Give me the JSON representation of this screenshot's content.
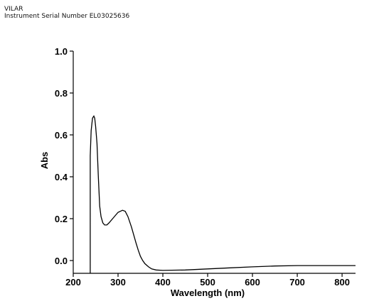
{
  "header": {
    "line1": "VILAR",
    "line2": "Instrument Serial Number EL03025636"
  },
  "chart_data": {
    "type": "line",
    "title": "",
    "xlabel": "Wavelength (nm)",
    "ylabel": "Abs",
    "xlim": [
      200,
      830
    ],
    "ylim": [
      -0.05,
      1.0
    ],
    "xticks": [
      "200",
      "300",
      "400",
      "500",
      "600",
      "700",
      "800"
    ],
    "yticks": [
      "0.0",
      "0.2",
      "0.4",
      "0.6",
      "0.8",
      "1.0"
    ],
    "grid": false,
    "line_color": "#000000",
    "series": [
      {
        "x": [
          238,
          238,
          240,
          243,
          246,
          248,
          250,
          253,
          256,
          259,
          262,
          266,
          270,
          275,
          280,
          290,
          300,
          310,
          316,
          322,
          330,
          340,
          345,
          350,
          355,
          360,
          368,
          375,
          385,
          400,
          450,
          500,
          550,
          600,
          650,
          700,
          750,
          800,
          830
        ],
        "y": [
          -0.06,
          0.5,
          0.62,
          0.68,
          0.69,
          0.68,
          0.64,
          0.56,
          0.4,
          0.26,
          0.21,
          0.18,
          0.17,
          0.17,
          0.18,
          0.205,
          0.23,
          0.24,
          0.235,
          0.21,
          0.16,
          0.085,
          0.05,
          0.02,
          0.0,
          -0.015,
          -0.03,
          -0.04,
          -0.045,
          -0.047,
          -0.045,
          -0.04,
          -0.035,
          -0.03,
          -0.026,
          -0.024,
          -0.024,
          -0.024,
          -0.024
        ]
      }
    ]
  }
}
